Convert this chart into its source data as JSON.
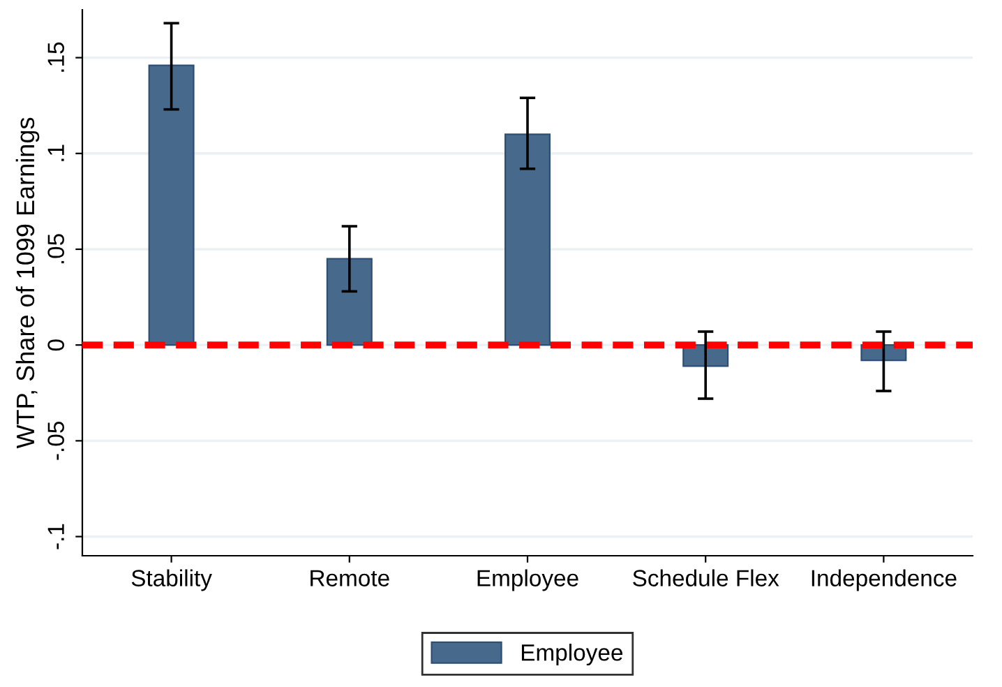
{
  "chart_data": {
    "type": "bar",
    "ylabel": "WTP, Share of 1099 Earnings",
    "categories": [
      "Stability",
      "Remote",
      "Employee",
      "Schedule Flex",
      "Independence"
    ],
    "series": [
      {
        "name": "Employee",
        "color": "#476a8c",
        "values": [
          0.146,
          0.045,
          0.11,
          -0.011,
          -0.008
        ],
        "errors": [
          [
            0.123,
            0.168
          ],
          [
            0.028,
            0.062
          ],
          [
            0.092,
            0.129
          ],
          [
            -0.028,
            0.007
          ],
          [
            -0.024,
            0.007
          ]
        ]
      }
    ],
    "ylim": [
      -0.11,
      0.175
    ],
    "yticks": [
      {
        "value": -0.1,
        "label": "-.1"
      },
      {
        "value": -0.05,
        "label": "-.05"
      },
      0,
      {
        "value": 0.05,
        "label": ".05"
      },
      {
        "value": 0.1,
        "label": ".1"
      },
      {
        "value": 0.15,
        "label": ".15"
      }
    ],
    "ref_lines": [
      {
        "axis": "y",
        "value": 0,
        "color": "#ff0000",
        "line_style": "dashed"
      }
    ],
    "grid": "y",
    "legend": "bottom"
  }
}
